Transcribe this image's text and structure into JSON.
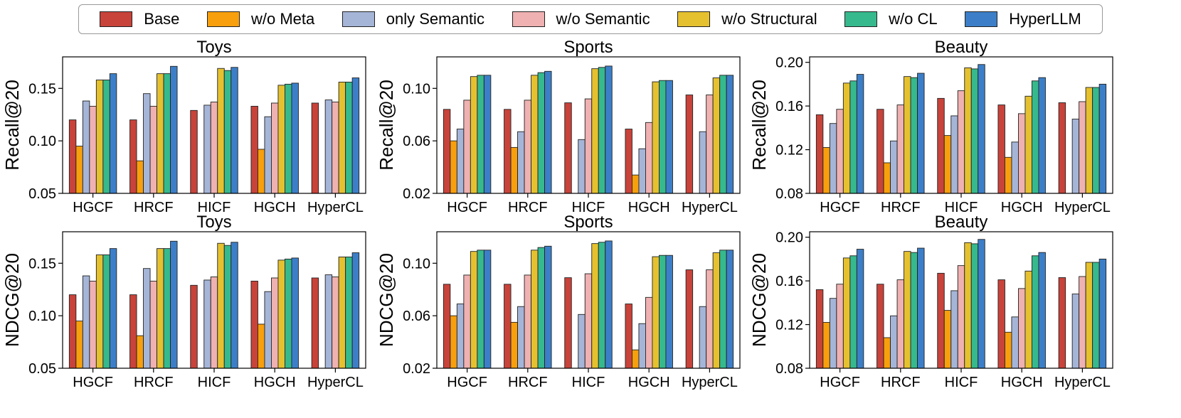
{
  "legend": [
    {
      "name": "Base",
      "color": "#C8433A"
    },
    {
      "name": "w/o Meta",
      "color": "#F79F0D"
    },
    {
      "name": "only Semantic",
      "color": "#A5B5D8"
    },
    {
      "name": "w/o Semantic",
      "color": "#EFB1B1"
    },
    {
      "name": "w/o Structural",
      "color": "#E5C130"
    },
    {
      "name": "w/o CL",
      "color": "#36B98D"
    },
    {
      "name": "HyperLLM",
      "color": "#3C7FC8"
    }
  ],
  "chart_data": [
    {
      "type": "bar",
      "title": "Toys",
      "ylabel": "Recall@20",
      "ylim": [
        0.05,
        0.18
      ],
      "yticks": [
        0.05,
        0.1,
        0.15
      ],
      "categories": [
        "HGCF",
        "HRCF",
        "HICF",
        "HGCH",
        "HyperCL"
      ],
      "series": [
        {
          "name": "Base",
          "values": [
            0.12,
            0.12,
            0.129,
            0.133,
            0.136
          ]
        },
        {
          "name": "w/o Meta",
          "values": [
            0.095,
            0.081,
            null,
            0.092,
            null
          ]
        },
        {
          "name": "only Semantic",
          "values": [
            0.138,
            0.145,
            0.134,
            0.123,
            0.139
          ]
        },
        {
          "name": "w/o Semantic",
          "values": [
            0.133,
            0.133,
            0.137,
            0.136,
            0.137
          ]
        },
        {
          "name": "w/o Structural",
          "values": [
            0.158,
            0.164,
            0.169,
            0.153,
            0.156
          ]
        },
        {
          "name": "w/o CL",
          "values": [
            0.158,
            0.164,
            0.167,
            0.154,
            0.156
          ]
        },
        {
          "name": "HyperLLM",
          "values": [
            0.164,
            0.171,
            0.17,
            0.155,
            0.16
          ]
        }
      ]
    },
    {
      "type": "bar",
      "title": "Sports",
      "ylabel": "Recall@20",
      "ylim": [
        0.02,
        0.124
      ],
      "yticks": [
        0.02,
        0.06,
        0.1
      ],
      "categories": [
        "HGCF",
        "HRCF",
        "HICF",
        "HGCH",
        "HyperCL"
      ],
      "series": [
        {
          "name": "Base",
          "values": [
            0.084,
            0.084,
            0.089,
            0.069,
            0.095
          ]
        },
        {
          "name": "w/o Meta",
          "values": [
            0.06,
            0.055,
            null,
            0.034,
            null
          ]
        },
        {
          "name": "only Semantic",
          "values": [
            0.069,
            0.067,
            0.061,
            0.054,
            0.067
          ]
        },
        {
          "name": "w/o Semantic",
          "values": [
            0.091,
            0.091,
            0.092,
            0.074,
            0.095
          ]
        },
        {
          "name": "w/o Structural",
          "values": [
            0.109,
            0.11,
            0.115,
            0.105,
            0.108
          ]
        },
        {
          "name": "w/o CL",
          "values": [
            0.11,
            0.112,
            0.116,
            0.106,
            0.11
          ]
        },
        {
          "name": "HyperLLM",
          "values": [
            0.11,
            0.113,
            0.117,
            0.106,
            0.11
          ]
        }
      ]
    },
    {
      "type": "bar",
      "title": "Beauty",
      "ylabel": "Recall@20",
      "ylim": [
        0.08,
        0.205
      ],
      "yticks": [
        0.08,
        0.12,
        0.16,
        0.2
      ],
      "categories": [
        "HGCF",
        "HRCF",
        "HICF",
        "HGCH",
        "HyperCL"
      ],
      "series": [
        {
          "name": "Base",
          "values": [
            0.152,
            0.157,
            0.167,
            0.161,
            0.163
          ]
        },
        {
          "name": "w/o Meta",
          "values": [
            0.122,
            0.108,
            0.133,
            0.113,
            null
          ]
        },
        {
          "name": "only Semantic",
          "values": [
            0.144,
            0.128,
            0.151,
            0.127,
            0.148
          ]
        },
        {
          "name": "w/o Semantic",
          "values": [
            0.157,
            0.161,
            0.174,
            0.153,
            0.164
          ]
        },
        {
          "name": "w/o Structural",
          "values": [
            0.181,
            0.187,
            0.195,
            0.169,
            0.177
          ]
        },
        {
          "name": "w/o CL",
          "values": [
            0.183,
            0.186,
            0.194,
            0.183,
            0.177
          ]
        },
        {
          "name": "HyperLLM",
          "values": [
            0.189,
            0.19,
            0.198,
            0.186,
            0.18
          ]
        }
      ]
    },
    {
      "type": "bar",
      "title": "Toys",
      "ylabel": "NDCG@20",
      "ylim": [
        0.05,
        0.18
      ],
      "yticks": [
        0.05,
        0.1,
        0.15
      ],
      "categories": [
        "HGCF",
        "HRCF",
        "HICF",
        "HGCH",
        "HyperCL"
      ],
      "series": [
        {
          "name": "Base",
          "values": [
            0.12,
            0.12,
            0.129,
            0.133,
            0.136
          ]
        },
        {
          "name": "w/o Meta",
          "values": [
            0.095,
            0.081,
            null,
            0.092,
            null
          ]
        },
        {
          "name": "only Semantic",
          "values": [
            0.138,
            0.145,
            0.134,
            0.123,
            0.139
          ]
        },
        {
          "name": "w/o Semantic",
          "values": [
            0.133,
            0.133,
            0.137,
            0.136,
            0.137
          ]
        },
        {
          "name": "w/o Structural",
          "values": [
            0.158,
            0.164,
            0.169,
            0.153,
            0.156
          ]
        },
        {
          "name": "w/o CL",
          "values": [
            0.158,
            0.164,
            0.167,
            0.154,
            0.156
          ]
        },
        {
          "name": "HyperLLM",
          "values": [
            0.164,
            0.171,
            0.17,
            0.155,
            0.16
          ]
        }
      ]
    },
    {
      "type": "bar",
      "title": "Sports",
      "ylabel": "NDCG@20",
      "ylim": [
        0.02,
        0.124
      ],
      "yticks": [
        0.02,
        0.06,
        0.1
      ],
      "categories": [
        "HGCF",
        "HRCF",
        "HICF",
        "HGCH",
        "HyperCL"
      ],
      "series": [
        {
          "name": "Base",
          "values": [
            0.084,
            0.084,
            0.089,
            0.069,
            0.095
          ]
        },
        {
          "name": "w/o Meta",
          "values": [
            0.06,
            0.055,
            null,
            0.034,
            null
          ]
        },
        {
          "name": "only Semantic",
          "values": [
            0.069,
            0.067,
            0.061,
            0.054,
            0.067
          ]
        },
        {
          "name": "w/o Semantic",
          "values": [
            0.091,
            0.091,
            0.092,
            0.074,
            0.095
          ]
        },
        {
          "name": "w/o Structural",
          "values": [
            0.109,
            0.11,
            0.115,
            0.105,
            0.108
          ]
        },
        {
          "name": "w/o CL",
          "values": [
            0.11,
            0.112,
            0.116,
            0.106,
            0.11
          ]
        },
        {
          "name": "HyperLLM",
          "values": [
            0.11,
            0.113,
            0.117,
            0.106,
            0.11
          ]
        }
      ]
    },
    {
      "type": "bar",
      "title": "Beauty",
      "ylabel": "NDCG@20",
      "ylim": [
        0.08,
        0.205
      ],
      "yticks": [
        0.08,
        0.12,
        0.16,
        0.2
      ],
      "categories": [
        "HGCF",
        "HRCF",
        "HICF",
        "HGCH",
        "HyperCL"
      ],
      "series": [
        {
          "name": "Base",
          "values": [
            0.152,
            0.157,
            0.167,
            0.161,
            0.163
          ]
        },
        {
          "name": "w/o Meta",
          "values": [
            0.122,
            0.108,
            0.133,
            0.113,
            null
          ]
        },
        {
          "name": "only Semantic",
          "values": [
            0.144,
            0.128,
            0.151,
            0.127,
            0.148
          ]
        },
        {
          "name": "w/o Semantic",
          "values": [
            0.157,
            0.161,
            0.174,
            0.153,
            0.164
          ]
        },
        {
          "name": "w/o Structural",
          "values": [
            0.181,
            0.187,
            0.195,
            0.169,
            0.177
          ]
        },
        {
          "name": "w/o CL",
          "values": [
            0.183,
            0.186,
            0.194,
            0.183,
            0.177
          ]
        },
        {
          "name": "HyperLLM",
          "values": [
            0.189,
            0.19,
            0.198,
            0.186,
            0.18
          ]
        }
      ]
    }
  ]
}
